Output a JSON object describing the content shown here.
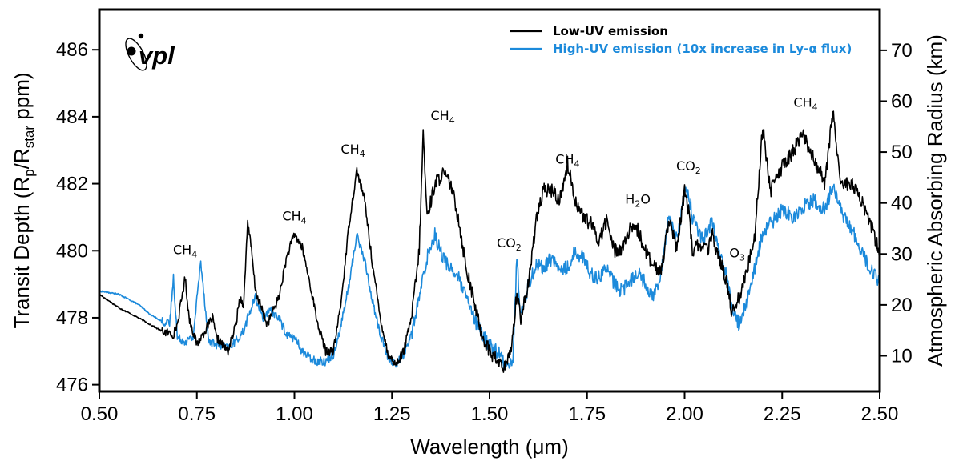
{
  "chart_data": {
    "type": "line",
    "xlabel": "Wavelength (μm)",
    "ylabel": "Transit Depth (Rp/Rstar ppm)",
    "ylabel_parts": {
      "pre": "Transit Depth (R",
      "sub1": "p",
      "mid": "/R",
      "sub2": "star",
      "post": " ppm)"
    },
    "y2label": "Atmospheric Absorbing Radius (km)",
    "xlim": [
      0.5,
      2.5
    ],
    "ylim": [
      475.8,
      487.2
    ],
    "y2lim": [
      3,
      78
    ],
    "x_ticks": [
      "0.50",
      "0.75",
      "1.00",
      "1.25",
      "1.50",
      "1.75",
      "2.00",
      "2.25",
      "2.50"
    ],
    "y_ticks": [
      "476",
      "478",
      "480",
      "482",
      "484",
      "486"
    ],
    "y2_ticks": [
      "10",
      "20",
      "30",
      "40",
      "50",
      "60",
      "70"
    ],
    "logo_text": "vpl",
    "legend_placement": "top-right",
    "grid": false,
    "series": [
      {
        "name": "Low-UV emission",
        "color": "#000000",
        "x": [
          0.5,
          0.55,
          0.6,
          0.63,
          0.66,
          0.69,
          0.7,
          0.72,
          0.73,
          0.75,
          0.77,
          0.79,
          0.8,
          0.83,
          0.85,
          0.86,
          0.87,
          0.88,
          0.89,
          0.9,
          0.93,
          0.96,
          0.98,
          1.0,
          1.02,
          1.04,
          1.06,
          1.08,
          1.1,
          1.12,
          1.14,
          1.16,
          1.18,
          1.2,
          1.22,
          1.24,
          1.26,
          1.28,
          1.3,
          1.32,
          1.33,
          1.34,
          1.36,
          1.38,
          1.4,
          1.42,
          1.44,
          1.46,
          1.48,
          1.5,
          1.52,
          1.54,
          1.55,
          1.56,
          1.57,
          1.58,
          1.6,
          1.62,
          1.64,
          1.66,
          1.68,
          1.7,
          1.72,
          1.74,
          1.76,
          1.78,
          1.8,
          1.82,
          1.84,
          1.86,
          1.88,
          1.9,
          1.92,
          1.94,
          1.96,
          1.98,
          2.0,
          2.01,
          2.02,
          2.04,
          2.06,
          2.07,
          2.09,
          2.11,
          2.12,
          2.14,
          2.16,
          2.18,
          2.2,
          2.22,
          2.25,
          2.28,
          2.3,
          2.33,
          2.36,
          2.38,
          2.4,
          2.43,
          2.46,
          2.48,
          2.5
        ],
        "values": [
          478.7,
          478.3,
          478.0,
          477.8,
          477.6,
          477.5,
          477.8,
          479.2,
          478.0,
          477.2,
          477.6,
          478.0,
          477.4,
          477.0,
          477.8,
          478.6,
          478.4,
          480.9,
          480.0,
          478.8,
          477.8,
          478.6,
          479.8,
          480.5,
          480.1,
          479.0,
          477.8,
          477.0,
          477.0,
          478.5,
          480.8,
          482.4,
          481.5,
          479.6,
          478.0,
          476.9,
          476.6,
          477.0,
          478.0,
          480.0,
          483.5,
          481.0,
          482.0,
          482.3,
          482.0,
          481.0,
          479.5,
          478.5,
          477.5,
          477.0,
          476.7,
          476.5,
          476.8,
          477.5,
          478.8,
          478.0,
          479.0,
          481.0,
          481.8,
          481.8,
          481.5,
          482.6,
          481.5,
          481.0,
          480.8,
          480.3,
          480.9,
          480.0,
          480.1,
          480.6,
          480.6,
          480.0,
          479.5,
          479.4,
          481.0,
          480.0,
          481.8,
          481.2,
          480.0,
          480.2,
          480.0,
          480.5,
          479.7,
          479.0,
          478.2,
          478.6,
          479.4,
          480.5,
          483.7,
          481.8,
          482.5,
          483.0,
          483.5,
          482.8,
          482.0,
          484.2,
          482.0,
          482.0,
          481.3,
          480.7,
          479.9
        ]
      },
      {
        "name": "High-UV emission (10x increase in Ly-α flux)",
        "color": "#1C8ADB",
        "x": [
          0.5,
          0.55,
          0.6,
          0.63,
          0.66,
          0.68,
          0.69,
          0.7,
          0.72,
          0.74,
          0.76,
          0.78,
          0.8,
          0.83,
          0.85,
          0.87,
          0.88,
          0.9,
          0.92,
          0.94,
          0.96,
          0.98,
          1.0,
          1.02,
          1.04,
          1.06,
          1.08,
          1.1,
          1.12,
          1.14,
          1.16,
          1.18,
          1.2,
          1.22,
          1.24,
          1.26,
          1.28,
          1.3,
          1.32,
          1.34,
          1.36,
          1.38,
          1.4,
          1.42,
          1.44,
          1.46,
          1.48,
          1.5,
          1.52,
          1.54,
          1.56,
          1.57,
          1.58,
          1.6,
          1.62,
          1.64,
          1.66,
          1.68,
          1.7,
          1.72,
          1.74,
          1.76,
          1.78,
          1.8,
          1.82,
          1.84,
          1.86,
          1.88,
          1.9,
          1.92,
          1.94,
          1.96,
          1.98,
          2.0,
          2.01,
          2.02,
          2.04,
          2.06,
          2.07,
          2.09,
          2.11,
          2.12,
          2.14,
          2.16,
          2.18,
          2.2,
          2.22,
          2.25,
          2.28,
          2.3,
          2.33,
          2.36,
          2.38,
          2.4,
          2.43,
          2.46,
          2.48,
          2.5
        ],
        "values": [
          478.8,
          478.7,
          478.4,
          478.1,
          477.9,
          477.8,
          479.2,
          477.4,
          477.3,
          477.4,
          479.7,
          477.3,
          477.2,
          477.1,
          477.3,
          477.6,
          478.0,
          478.6,
          478.0,
          478.2,
          478.0,
          477.5,
          477.4,
          477.0,
          476.8,
          476.7,
          476.7,
          476.9,
          477.8,
          479.0,
          480.5,
          479.7,
          478.5,
          477.5,
          476.8,
          476.6,
          476.9,
          477.5,
          478.6,
          479.8,
          480.5,
          479.8,
          479.5,
          479.2,
          478.6,
          478.0,
          477.5,
          477.2,
          477.0,
          476.6,
          476.7,
          479.8,
          478.0,
          479.0,
          479.6,
          479.5,
          479.8,
          479.4,
          479.5,
          480.0,
          479.8,
          479.3,
          479.2,
          479.5,
          479.0,
          478.8,
          479.1,
          479.4,
          479.0,
          478.6,
          479.4,
          481.1,
          480.3,
          481.7,
          481.8,
          481.0,
          480.4,
          480.5,
          480.9,
          479.9,
          479.2,
          478.3,
          477.8,
          478.5,
          479.5,
          480.5,
          480.8,
          481.2,
          481.0,
          481.3,
          481.5,
          481.2,
          482.0,
          481.2,
          480.6,
          479.8,
          479.4,
          479.0
        ]
      }
    ],
    "annotations": [
      {
        "base": "CH",
        "sub": "4",
        "x": 0.72,
        "y": 479.9
      },
      {
        "base": "CH",
        "sub": "4",
        "x": 1.0,
        "y": 480.9
      },
      {
        "base": "CH",
        "sub": "4",
        "x": 1.15,
        "y": 482.9
      },
      {
        "base": "CH",
        "sub": "4",
        "x": 1.38,
        "y": 483.9
      },
      {
        "base": "CO",
        "sub": "2",
        "x": 1.55,
        "y": 480.1
      },
      {
        "base": "CH",
        "sub": "4",
        "x": 1.7,
        "y": 482.6
      },
      {
        "base": "H",
        "sub": "2",
        "post": "O",
        "x": 1.88,
        "y": 481.4
      },
      {
        "base": "CO",
        "sub": "2",
        "x": 2.01,
        "y": 482.4
      },
      {
        "base": "O",
        "sub": "3",
        "x": 2.135,
        "y": 479.8
      },
      {
        "base": "CH",
        "sub": "4",
        "x": 2.31,
        "y": 484.3
      }
    ]
  }
}
